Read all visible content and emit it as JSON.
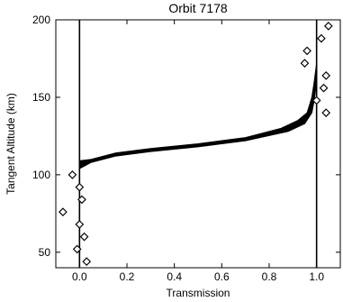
{
  "chart_data": {
    "type": "scatter",
    "title": "Orbit  7178",
    "xlabel": "Transmission",
    "ylabel": "Tangent Altitude (km)",
    "xlim": [
      -0.1,
      1.1
    ],
    "ylim": [
      40,
      200
    ],
    "x_ticks": [
      "0.0",
      "0.2",
      "0.4",
      "0.6",
      "0.8",
      "1.0"
    ],
    "x_tick_values": [
      0.0,
      0.2,
      0.4,
      0.6,
      0.8,
      1.0
    ],
    "y_ticks": [
      "50",
      "100",
      "150",
      "200"
    ],
    "y_tick_values": [
      50,
      100,
      150,
      200
    ],
    "reference_lines_x": [
      0.0,
      1.0
    ],
    "grid": false,
    "series": [
      {
        "kind": "band",
        "color": "#000000",
        "upper": [
          {
            "x": 0.0,
            "y": 109
          },
          {
            "x": 0.05,
            "y": 110
          },
          {
            "x": 0.15,
            "y": 114
          },
          {
            "x": 0.3,
            "y": 117
          },
          {
            "x": 0.5,
            "y": 120
          },
          {
            "x": 0.7,
            "y": 124
          },
          {
            "x": 0.85,
            "y": 130
          },
          {
            "x": 0.92,
            "y": 135
          },
          {
            "x": 0.96,
            "y": 140
          },
          {
            "x": 0.98,
            "y": 150
          },
          {
            "x": 0.99,
            "y": 160
          },
          {
            "x": 1.0,
            "y": 172
          }
        ],
        "lower": [
          {
            "x": 1.0,
            "y": 160
          },
          {
            "x": 0.99,
            "y": 148
          },
          {
            "x": 0.98,
            "y": 140
          },
          {
            "x": 0.95,
            "y": 133
          },
          {
            "x": 0.88,
            "y": 128
          },
          {
            "x": 0.7,
            "y": 122
          },
          {
            "x": 0.5,
            "y": 118
          },
          {
            "x": 0.3,
            "y": 115
          },
          {
            "x": 0.15,
            "y": 112
          },
          {
            "x": 0.05,
            "y": 108
          },
          {
            "x": 0.0,
            "y": 104
          }
        ]
      },
      {
        "kind": "points",
        "marker": "diamond",
        "points": [
          {
            "x": -0.03,
            "y": 100
          },
          {
            "x": 0.0,
            "y": 92
          },
          {
            "x": 0.01,
            "y": 84
          },
          {
            "x": -0.07,
            "y": 76
          },
          {
            "x": 0.0,
            "y": 68
          },
          {
            "x": 0.02,
            "y": 60
          },
          {
            "x": -0.01,
            "y": 52
          },
          {
            "x": 0.03,
            "y": 44
          },
          {
            "x": 0.96,
            "y": 180
          },
          {
            "x": 0.95,
            "y": 172
          },
          {
            "x": 1.05,
            "y": 196
          },
          {
            "x": 1.02,
            "y": 188
          },
          {
            "x": 1.04,
            "y": 164
          },
          {
            "x": 1.03,
            "y": 156
          },
          {
            "x": 1.0,
            "y": 148
          },
          {
            "x": 1.04,
            "y": 140
          }
        ]
      }
    ]
  }
}
